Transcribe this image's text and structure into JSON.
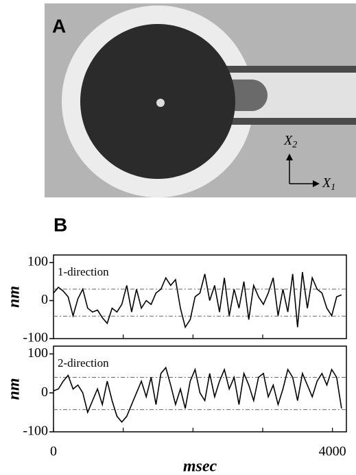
{
  "panel_a": {
    "label": "A",
    "axis_x2": {
      "symbol": "X",
      "subscript": "2"
    },
    "axis_x1": {
      "symbol": "X",
      "subscript": "1"
    }
  },
  "panel_b": {
    "label": "B"
  },
  "chart_data": [
    {
      "type": "line",
      "annotation": "1-direction",
      "ylabel": "nm",
      "x": [
        0,
        70,
        140,
        210,
        280,
        350,
        420,
        490,
        560,
        630,
        700,
        770,
        840,
        910,
        980,
        1050,
        1120,
        1190,
        1260,
        1330,
        1400,
        1470,
        1540,
        1610,
        1680,
        1750,
        1820,
        1890,
        1960,
        2030,
        2100,
        2170,
        2240,
        2310,
        2380,
        2450,
        2520,
        2590,
        2660,
        2730,
        2800,
        2870,
        2940,
        3010,
        3080,
        3150,
        3220,
        3290,
        3360,
        3430,
        3500,
        3570,
        3640,
        3710,
        3780,
        3850,
        3920,
        3990,
        4060,
        4130
      ],
      "series": [
        {
          "color": "#000000",
          "values": [
            20,
            35,
            25,
            10,
            -40,
            5,
            30,
            -20,
            -30,
            -25,
            -45,
            -60,
            -20,
            -30,
            -10,
            40,
            -30,
            30,
            -20,
            0,
            -10,
            20,
            30,
            60,
            40,
            55,
            -20,
            -70,
            -50,
            10,
            20,
            70,
            0,
            40,
            -30,
            60,
            -40,
            30,
            -20,
            50,
            -50,
            40,
            10,
            -10,
            20,
            60,
            -40,
            30,
            -30,
            70,
            -70,
            75,
            -20,
            60,
            30,
            20,
            -20,
            -40,
            10,
            15
          ]
        }
      ],
      "hlines": [
        30,
        -41
      ],
      "xlim": [
        0,
        4200
      ],
      "ylim": [
        -100,
        120
      ],
      "yticks": [
        -100,
        0,
        100
      ],
      "xminorticks": [
        1000,
        2000,
        3000
      ]
    },
    {
      "type": "line",
      "annotation": "2-direction",
      "ylabel": "nm",
      "xlabel": "msec",
      "x": [
        0,
        70,
        140,
        210,
        280,
        350,
        420,
        490,
        560,
        630,
        700,
        770,
        840,
        910,
        980,
        1050,
        1120,
        1190,
        1260,
        1330,
        1400,
        1470,
        1540,
        1610,
        1680,
        1750,
        1820,
        1890,
        1960,
        2030,
        2100,
        2170,
        2240,
        2310,
        2380,
        2450,
        2520,
        2590,
        2660,
        2730,
        2800,
        2870,
        2940,
        3010,
        3080,
        3150,
        3220,
        3290,
        3360,
        3430,
        3500,
        3570,
        3640,
        3710,
        3780,
        3850,
        3920,
        3990,
        4060,
        4130
      ],
      "series": [
        {
          "color": "#000000",
          "values": [
            5,
            10,
            30,
            45,
            10,
            20,
            0,
            -50,
            -20,
            10,
            -30,
            30,
            -20,
            -60,
            -75,
            -60,
            -30,
            0,
            30,
            -10,
            40,
            -30,
            50,
            65,
            20,
            -30,
            10,
            -40,
            30,
            60,
            0,
            -20,
            50,
            -10,
            30,
            60,
            10,
            40,
            -30,
            50,
            20,
            -20,
            40,
            50,
            -10,
            20,
            -30,
            10,
            60,
            40,
            -20,
            50,
            20,
            -10,
            30,
            50,
            20,
            60,
            40,
            -40
          ]
        }
      ],
      "hlines": [
        40,
        -43
      ],
      "xlim": [
        0,
        4200
      ],
      "ylim": [
        -100,
        120
      ],
      "yticks": [
        -100,
        0,
        100
      ],
      "xticks": [
        0,
        4000
      ],
      "xminorticks": [
        1000,
        2000,
        3000
      ]
    }
  ]
}
